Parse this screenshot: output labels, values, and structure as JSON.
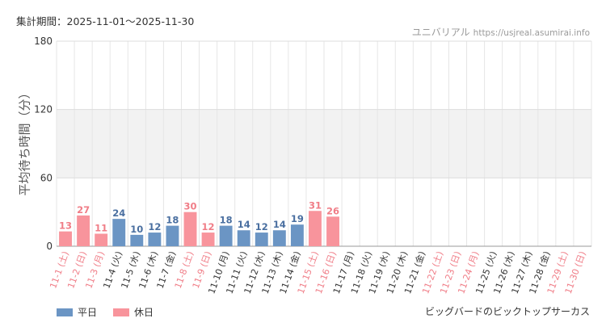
{
  "header": {
    "period": "集計期間：2025-11-01～2025-11-30",
    "site_name": "ユニバリアル",
    "site_url": "https://usjreal.asumirai.info"
  },
  "footer": {
    "attraction": "ビッグバードのビックトップサーカス"
  },
  "colors": {
    "weekday": "#6b95c4",
    "holiday": "#f8949c",
    "weekday_text": "#4a6fa0",
    "holiday_text": "#f07d87",
    "band": "#f2f2f2",
    "grid": "#e6e6e6"
  },
  "chart_data": {
    "type": "bar",
    "ylabel": "平均待ち時間（分）",
    "ylim": [
      0,
      180
    ],
    "yticks": [
      0,
      60,
      120,
      180
    ],
    "grid": true,
    "legend_position": "bottom-left",
    "legend": [
      {
        "key": "weekday",
        "label": "平日"
      },
      {
        "key": "holiday",
        "label": "休日"
      }
    ],
    "categories": [
      "11-1 (土)",
      "11-2 (日)",
      "11-3 (月)",
      "11-4 (火)",
      "11-5 (水)",
      "11-6 (木)",
      "11-7 (金)",
      "11-8 (土)",
      "11-9 (日)",
      "11-10 (月)",
      "11-11 (火)",
      "11-12 (水)",
      "11-13 (木)",
      "11-14 (金)",
      "11-15 (土)",
      "11-16 (日)",
      "11-17 (月)",
      "11-18 (火)",
      "11-19 (水)",
      "11-20 (木)",
      "11-21 (金)",
      "11-22 (土)",
      "11-23 (日)",
      "11-24 (月)",
      "11-25 (火)",
      "11-26 (水)",
      "11-27 (木)",
      "11-28 (金)",
      "11-29 (土)",
      "11-30 (日)"
    ],
    "day_type": [
      "holiday",
      "holiday",
      "holiday",
      "weekday",
      "weekday",
      "weekday",
      "weekday",
      "holiday",
      "holiday",
      "weekday",
      "weekday",
      "weekday",
      "weekday",
      "weekday",
      "holiday",
      "holiday",
      "weekday",
      "weekday",
      "weekday",
      "weekday",
      "weekday",
      "holiday",
      "holiday",
      "holiday",
      "weekday",
      "weekday",
      "weekday",
      "weekday",
      "holiday",
      "holiday"
    ],
    "values": [
      13,
      27,
      11,
      24,
      10,
      12,
      18,
      30,
      12,
      18,
      14,
      12,
      14,
      19,
      31,
      26,
      null,
      null,
      null,
      null,
      null,
      null,
      null,
      null,
      null,
      null,
      null,
      null,
      null,
      null
    ]
  }
}
